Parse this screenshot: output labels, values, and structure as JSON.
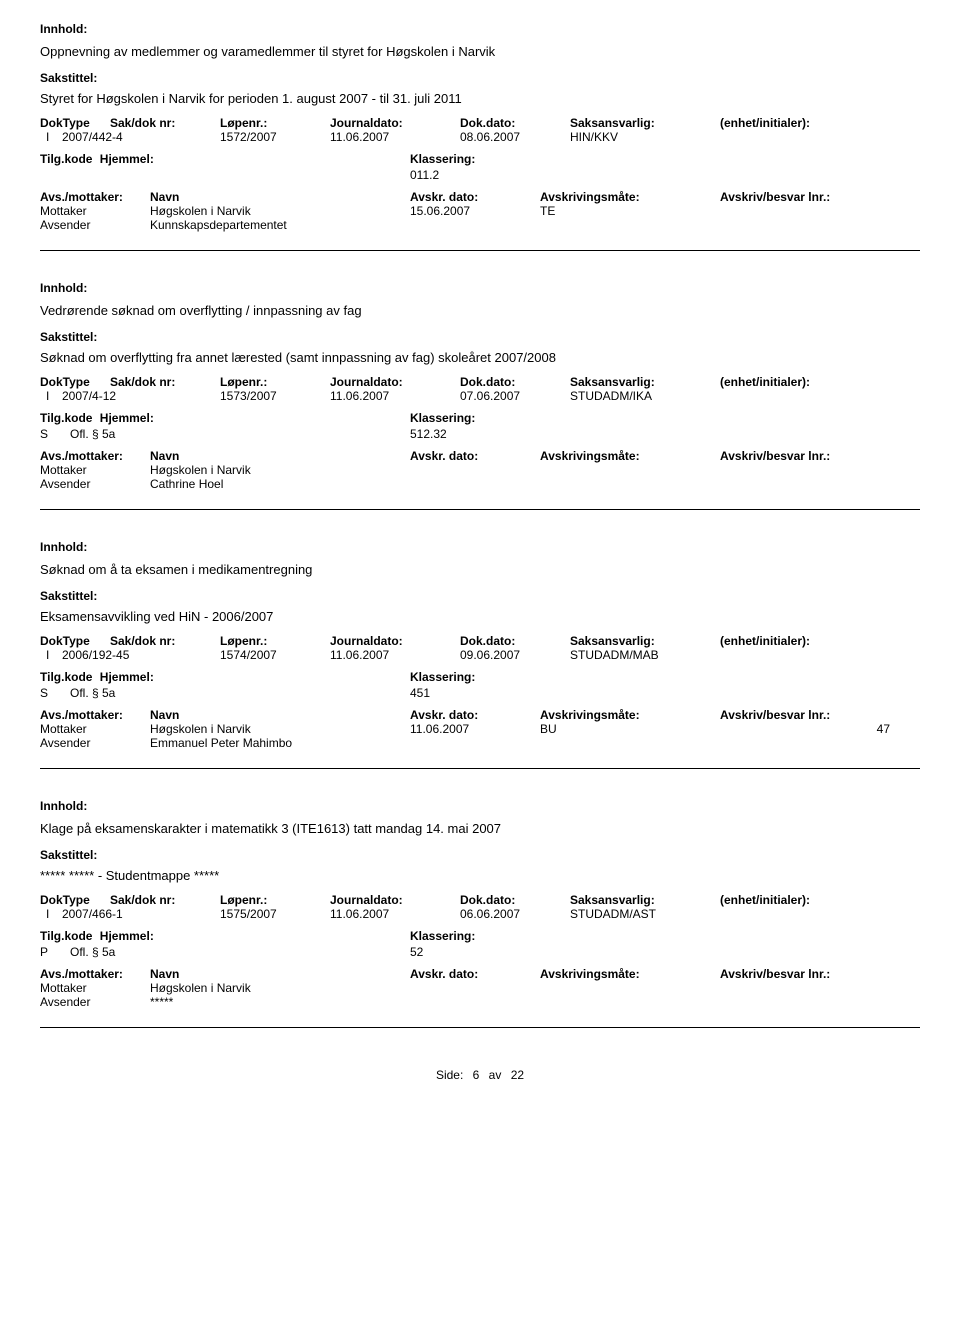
{
  "labels": {
    "innhold": "Innhold:",
    "sakstittel": "Sakstittel:",
    "doktype": "DokType",
    "saknr": "Sak/dok nr:",
    "lopenr": "Løpenr.:",
    "journaldato": "Journaldato:",
    "dokdato": "Dok.dato:",
    "saksansvarlig": "Saksansvarlig:",
    "enhet": "(enhet/initialer):",
    "tilgkode": "Tilg.kode",
    "hjemmel": "Hjemmel:",
    "klassering": "Klassering:",
    "avsmottaker": "Avs./mottaker:",
    "navn": "Navn",
    "avskrdato": "Avskr. dato:",
    "avskrivingsmate": "Avskrivingsmåte:",
    "avskrivlnr": "Avskriv/besvar lnr.:",
    "mottaker": "Mottaker",
    "avsender": "Avsender"
  },
  "records": [
    {
      "innhold": "Oppnevning av medlemmer og varamedlemmer til styret for Høgskolen i Narvik",
      "sakstittel": "Styret for Høgskolen i Narvik for perioden 1. august 2007 - til 31. juli 2011",
      "doktype": "I",
      "saknr": "2007/442-4",
      "lopenr": "1572/2007",
      "journaldato": "11.06.2007",
      "dokdato": "08.06.2007",
      "saksansvarlig": "HIN/KKV",
      "tilgcode": "",
      "hjemmel": "",
      "klassering": "011.2",
      "mottaker_name": "Høgskolen i Narvik",
      "mottaker_date": "15.06.2007",
      "mottaker_mode": "TE",
      "mottaker_lnr": "",
      "avsender_name": "Kunnskapsdepartementet"
    },
    {
      "innhold": "Vedrørende søknad om overflytting / innpassning av fag",
      "sakstittel": "Søknad om overflytting fra annet lærested (samt innpassning av fag) skoleåret 2007/2008",
      "doktype": "I",
      "saknr": "2007/4-12",
      "lopenr": "1573/2007",
      "journaldato": "11.06.2007",
      "dokdato": "07.06.2007",
      "saksansvarlig": "STUDADM/IKA",
      "tilgcode": "S",
      "hjemmel": "Ofl. § 5a",
      "klassering": "512.32",
      "mottaker_name": "Høgskolen i Narvik",
      "mottaker_date": "",
      "mottaker_mode": "",
      "mottaker_lnr": "",
      "avsender_name": "Cathrine Hoel"
    },
    {
      "innhold": "Søknad om å ta eksamen i medikamentregning",
      "sakstittel": "Eksamensavvikling ved HiN - 2006/2007",
      "doktype": "I",
      "saknr": "2006/192-45",
      "lopenr": "1574/2007",
      "journaldato": "11.06.2007",
      "dokdato": "09.06.2007",
      "saksansvarlig": "STUDADM/MAB",
      "tilgcode": "S",
      "hjemmel": "Ofl. § 5a",
      "klassering": "451",
      "mottaker_name": "Høgskolen i Narvik",
      "mottaker_date": "11.06.2007",
      "mottaker_mode": "BU",
      "mottaker_lnr": "47",
      "avsender_name": "Emmanuel Peter Mahimbo"
    },
    {
      "innhold": "Klage på eksamenskarakter i matematikk 3 (ITE1613) tatt mandag 14. mai 2007",
      "sakstittel": "***** ***** - Studentmappe *****",
      "doktype": "I",
      "saknr": "2007/466-1",
      "lopenr": "1575/2007",
      "journaldato": "11.06.2007",
      "dokdato": "06.06.2007",
      "saksansvarlig": "STUDADM/AST",
      "tilgcode": "P",
      "hjemmel": "Ofl. § 5a",
      "klassering": "52",
      "mottaker_name": "Høgskolen i Narvik",
      "mottaker_date": "",
      "mottaker_mode": "",
      "mottaker_lnr": "",
      "avsender_name": "*****"
    }
  ],
  "footer": {
    "side_label": "Side:",
    "current": "6",
    "av": "av",
    "total": "22"
  }
}
